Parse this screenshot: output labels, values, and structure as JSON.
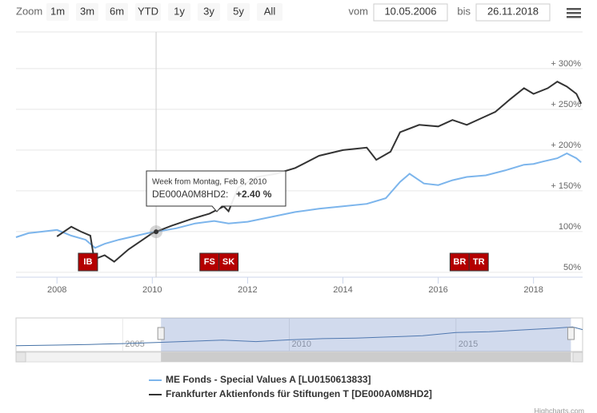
{
  "toolbar": {
    "zoom_label": "Zoom",
    "buttons": [
      "1m",
      "3m",
      "6m",
      "YTD",
      "1y",
      "3y",
      "5y",
      "All"
    ],
    "from_label": "vom",
    "from_date": "10.05.2006",
    "to_label": "bis",
    "to_date": "26.11.2018"
  },
  "chart_data": {
    "type": "line",
    "xlim": [
      2007.14,
      2019.03
    ],
    "xticks": [
      2008,
      2010,
      2012,
      2014,
      2016,
      2018
    ],
    "ylim": [
      44,
      345
    ],
    "yticks": [
      {
        "value": 50,
        "label": "50%"
      },
      {
        "value": 100,
        "label": "100%"
      },
      {
        "value": 150,
        "label": "+ 150%"
      },
      {
        "value": 200,
        "label": "+ 200%"
      },
      {
        "value": 250,
        "label": "+ 250%"
      },
      {
        "value": 300,
        "label": "+ 300%"
      }
    ],
    "grid": true,
    "series": [
      {
        "name": "ME Fonds - Special Values A [LU0150613833]",
        "color": "#7cb5ec",
        "x": [
          2007.14,
          2007.4,
          2007.7,
          2008.0,
          2008.3,
          2008.6,
          2008.8,
          2009.0,
          2009.3,
          2009.6,
          2009.9,
          2010.1,
          2010.5,
          2010.9,
          2011.3,
          2011.6,
          2012.0,
          2012.5,
          2013.0,
          2013.5,
          2014.0,
          2014.5,
          2014.9,
          2015.2,
          2015.4,
          2015.7,
          2016.0,
          2016.3,
          2016.6,
          2017.0,
          2017.4,
          2017.8,
          2018.0,
          2018.2,
          2018.5,
          2018.7,
          2018.9,
          2019.0
        ],
        "values": [
          93,
          98,
          100,
          102,
          95,
          90,
          80,
          85,
          90,
          94,
          98,
          100,
          104,
          110,
          113,
          110,
          112,
          118,
          124,
          128,
          131,
          134,
          141,
          161,
          171,
          159,
          157,
          163,
          167,
          169,
          175,
          182,
          183,
          186,
          190,
          196,
          190,
          185
        ]
      },
      {
        "name": "Frankfurter Aktienfonds für Stiftungen T [DE000A0M8HD2]",
        "color": "#333333",
        "x": [
          2008.0,
          2008.3,
          2008.5,
          2008.7,
          2008.78,
          2009.0,
          2009.2,
          2009.5,
          2009.8,
          2010.0,
          2010.4,
          2010.8,
          2011.2,
          2011.5,
          2011.6,
          2011.8,
          2012.2,
          2012.6,
          2013.0,
          2013.5,
          2014.0,
          2014.5,
          2014.7,
          2015.0,
          2015.2,
          2015.6,
          2016.0,
          2016.3,
          2016.6,
          2016.9,
          2017.2,
          2017.5,
          2017.8,
          2018.0,
          2018.3,
          2018.5,
          2018.7,
          2018.9,
          2019.0
        ],
        "values": [
          94,
          106,
          100,
          95,
          66,
          71,
          63,
          78,
          90,
          98,
          107,
          115,
          122,
          131,
          125,
          154,
          167,
          171,
          178,
          193,
          200,
          203,
          188,
          198,
          222,
          231,
          229,
          237,
          231,
          239,
          247,
          262,
          276,
          269,
          276,
          284,
          278,
          269,
          257
        ]
      }
    ],
    "flags": [
      {
        "title": "IB",
        "x": 2008.65
      },
      {
        "title": "FS",
        "x": 2011.2
      },
      {
        "title": "SK",
        "x": 2011.6
      },
      {
        "title": "BR",
        "x": 2016.45
      },
      {
        "title": "TR",
        "x": 2016.85
      }
    ],
    "tooltip": {
      "x": 2010.08,
      "header": "Week from Montag, Feb 8, 2010",
      "label": "DE000A0M8HD2:",
      "value": "+2.40 %"
    },
    "navigator": {
      "xlim": [
        2001.8,
        2018.8
      ],
      "xticks": [
        2005,
        2010,
        2015
      ],
      "ylim": [
        0,
        230
      ],
      "x": [
        2001.8,
        2003,
        2004,
        2005,
        2006,
        2007,
        2008,
        2009,
        2010,
        2011,
        2012,
        2013,
        2014,
        2015,
        2016,
        2017,
        2018,
        2018.5,
        2018.8
      ],
      "values": [
        40,
        44,
        48,
        54,
        62,
        70,
        78,
        68,
        80,
        88,
        92,
        100,
        108,
        130,
        135,
        148,
        160,
        168,
        150
      ],
      "selection": [
        2006.15,
        2018.45
      ]
    },
    "credits": "Highcharts.com"
  }
}
